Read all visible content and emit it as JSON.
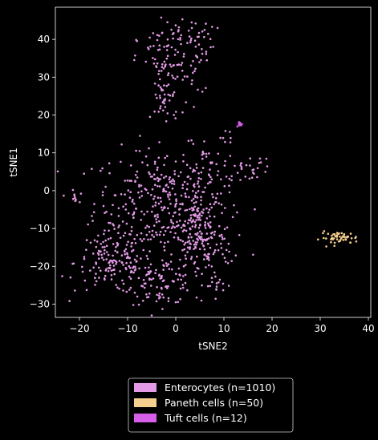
{
  "chart_data": {
    "type": "scatter",
    "xlabel": "tSNE2",
    "ylabel": "tSNE1",
    "xlim": [
      -25,
      40.5
    ],
    "ylim": [
      -33.5,
      48.5
    ],
    "xticks": [
      -20,
      -10,
      0,
      10,
      20,
      30,
      40
    ],
    "yticks": [
      -30,
      -20,
      -10,
      0,
      10,
      20,
      30,
      40
    ],
    "grid": false,
    "legend_placement": "bottom-center",
    "background": "#000000",
    "series": [
      {
        "name": "Enterocytes (n=1010)",
        "color": "#e39be6",
        "count": 1010,
        "clusters": [
          {
            "cx": -3,
            "cy": -3,
            "sx": 7,
            "sy": 7,
            "n": 300
          },
          {
            "cx": -13,
            "cy": -19,
            "sx": 4,
            "sy": 4,
            "n": 150
          },
          {
            "cx": -3,
            "cy": -24,
            "sx": 3.5,
            "sy": 3,
            "n": 90
          },
          {
            "cx": 5,
            "cy": -14,
            "sx": 3.5,
            "sy": 5,
            "n": 150
          },
          {
            "cx": 4,
            "cy": -1,
            "sx": 3,
            "sy": 6,
            "n": 80
          },
          {
            "cx": 2,
            "cy": 40,
            "sx": 3,
            "sy": 3,
            "n": 60
          },
          {
            "cx": -3,
            "cy": 34,
            "sx": 2.5,
            "sy": 4,
            "n": 50
          },
          {
            "cx": -2,
            "cy": 24,
            "sx": 1.5,
            "sy": 3.5,
            "n": 40
          },
          {
            "cx": 3,
            "cy": 30,
            "sx": 1.5,
            "sy": 3,
            "n": 20
          },
          {
            "cx": 15,
            "cy": 6,
            "sx": 2.5,
            "sy": 1.5,
            "n": 30
          },
          {
            "cx": -21,
            "cy": -2,
            "sx": 0.5,
            "sy": 1,
            "n": 10
          },
          {
            "cx": 8,
            "cy": -25,
            "sx": 2,
            "sy": 1.5,
            "n": 15
          },
          {
            "cx": 6,
            "cy": 10,
            "sx": 1,
            "sy": 0.5,
            "n": 8
          },
          {
            "cx": 11,
            "cy": 14,
            "sx": 1,
            "sy": 1,
            "n": 7
          }
        ]
      },
      {
        "name": "Paneth cells (n=50)",
        "color": "#f6d08f",
        "count": 50,
        "clusters": [
          {
            "cx": 34,
            "cy": -12.5,
            "sx": 2,
            "sy": 0.8,
            "n": 50
          }
        ]
      },
      {
        "name": "Tuft cells (n=12)",
        "color": "#d65ee9",
        "count": 12,
        "clusters": [
          {
            "cx": 13.5,
            "cy": 17.5,
            "sx": 0.25,
            "sy": 0.3,
            "n": 12
          }
        ]
      }
    ]
  }
}
